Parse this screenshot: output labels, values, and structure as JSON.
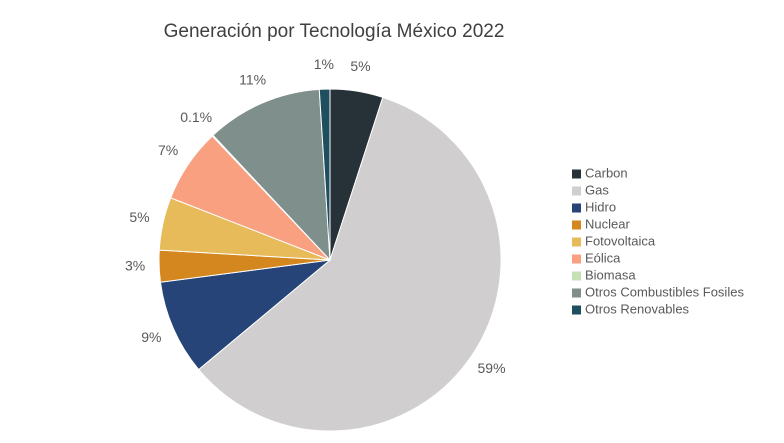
{
  "chart_data": {
    "type": "pie",
    "title": "Generación por Tecnología México 2022",
    "categories": [
      "Carbon",
      "Gas",
      "Hidro",
      "Nuclear",
      "Fotovoltaica",
      "Eólica",
      "Biomasa",
      "Otros Combustibles Fosiles",
      "Otros Renovables"
    ],
    "values": [
      5,
      59,
      9,
      3,
      5,
      7,
      0.1,
      11,
      1
    ],
    "value_labels": [
      "5%",
      "59%",
      "9%",
      "3%",
      "5%",
      "7%",
      "0.1%",
      "11%",
      "1%"
    ],
    "colors": [
      "#263238",
      "#d0cece",
      "#264478",
      "#d4861f",
      "#e8bb5a",
      "#f9a080",
      "#c5e0b4",
      "#7f8f8c",
      "#1f4e5f"
    ],
    "legend": "right"
  }
}
